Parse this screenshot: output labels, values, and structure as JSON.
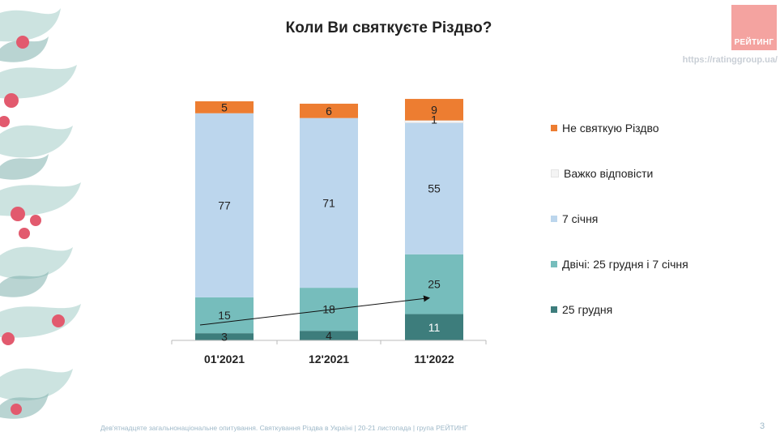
{
  "title": "Коли Ви святкуєте Різдво?",
  "logo_text": "РЕЙТИНГ",
  "url": "https://ratinggroup.ua/",
  "footer": "Дев'ятнадцяте загальнонаціональне опитування. Святкування Різдва в Україні | 20-21 листопада | група РЕЙТИНГ",
  "page_number": "3",
  "decoration": {
    "name": "holly-branch-decoration"
  },
  "chart_data": {
    "type": "bar",
    "stacked": true,
    "categories": [
      "01'2021",
      "12'2021",
      "11'2022"
    ],
    "series": [
      {
        "name": "25 грудня",
        "color": "#3d7d7c",
        "values": [
          3,
          4,
          11
        ]
      },
      {
        "name": "Двічі: 25 грудня і 7 січня",
        "color": "#76bdbc",
        "values": [
          15,
          18,
          25
        ]
      },
      {
        "name": "7 січня",
        "color": "#bcd6ed",
        "values": [
          77,
          71,
          55
        ]
      },
      {
        "name": "Важко відповісти",
        "color": "#f4f4f4",
        "values": [
          0,
          0,
          1
        ]
      },
      {
        "name": "Не святкую Різдво",
        "color": "#ed7d31",
        "values": [
          5,
          6,
          9
        ]
      }
    ],
    "ylim": [
      0,
      100
    ],
    "grid": false,
    "legend_position": "right",
    "legend_order": [
      "Не святкую Різдво",
      "Важко відповісти",
      "7 січня",
      "Двічі: 25 грудня і 7 січня",
      "25 грудня"
    ],
    "annotations": [
      {
        "type": "trend-arrow",
        "series": "Двічі: 25 грудня і 7 січня",
        "from": "01'2021",
        "to": "11'2022"
      }
    ]
  }
}
